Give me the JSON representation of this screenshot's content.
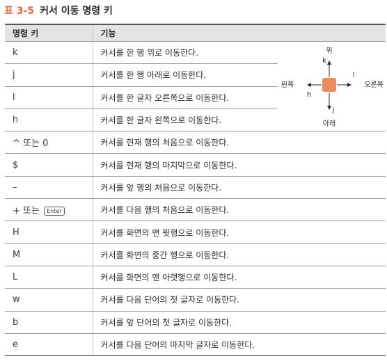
{
  "caption": {
    "number": "표 3-5",
    "title": "커서 이동 명령 키"
  },
  "table": {
    "headers": [
      "명령 키",
      "기능"
    ],
    "rows": [
      {
        "key": "k",
        "function": "커서를 한 행 위로 이동한다."
      },
      {
        "key": "j",
        "function": "커서를 한 행 아래로 이동한다."
      },
      {
        "key": "l",
        "function": "커서를 한 글자 오른쪽으로 이동한다."
      },
      {
        "key": "h",
        "function": "커서를 한 글자 왼쪽으로 이동한다."
      },
      {
        "key": "^ 또는 0",
        "function": "커서를 현재 행의 처음으로 이동한다."
      },
      {
        "key": "$",
        "function": "커서를 현재 행의 마지막으로 이동한다."
      },
      {
        "key": "–",
        "function": "커서를 앞 행의 처음으로 이동한다."
      },
      {
        "key": "+ 또는",
        "key_badge": "Enter",
        "function": "커서를 다음 행의 처음으로 이동한다."
      },
      {
        "key": "H",
        "function": "커서를 화면의 맨 윗행으로 이동한다."
      },
      {
        "key": "M",
        "function": "커서를 화면의 중간 행으로 이동한다."
      },
      {
        "key": "L",
        "function": "커서를 화면의 맨 아랫행으로 이동한다."
      },
      {
        "key": "w",
        "function": "커서를 다음 단어의 첫 글자로 이동한다."
      },
      {
        "key": "b",
        "function": "커서를 앞 단어의 첫 글자로 이동한다."
      },
      {
        "key": "e",
        "function": "커서를 다음 단어의 마지막 글자로 이동한다."
      }
    ]
  },
  "diagram": {
    "up_label": "위",
    "down_label": "아래",
    "left_label": "왼쪽",
    "right_label": "오른쪽",
    "up_key": "k",
    "down_key": "j",
    "left_key": "h",
    "right_key": "l",
    "cursor_color": "#f08a5d"
  },
  "colors": {
    "caption_accent": "#e8663d",
    "header_bg": "#e3e3e3"
  }
}
